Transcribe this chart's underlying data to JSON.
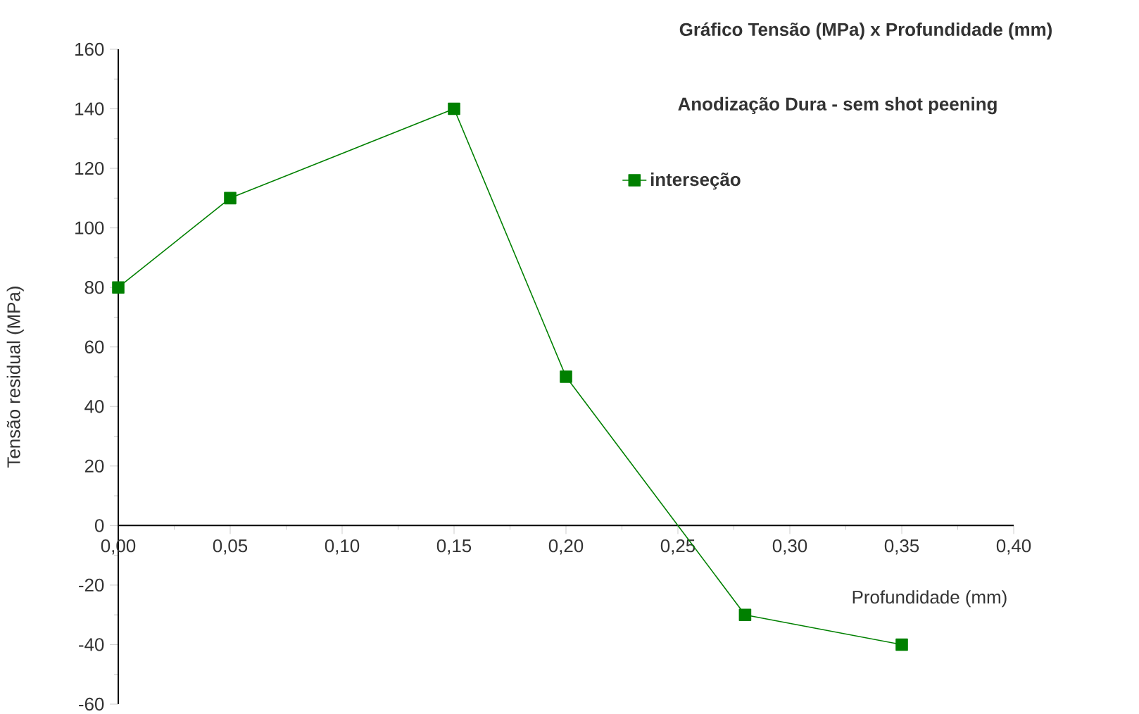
{
  "chart_data": {
    "type": "line",
    "title": "Gráfico Tensão (MPa) x Profundidade (mm)",
    "subtitle": "Anodização Dura - sem shot peening",
    "xlabel": "Profundidade (mm)",
    "ylabel": "Tensão residual (MPa)",
    "x": [
      0,
      0.05,
      0.15,
      0.2,
      0.28,
      0.35
    ],
    "series": [
      {
        "name": "interseção",
        "color": "#008000",
        "values": [
          80,
          110,
          140,
          50,
          -30,
          -40
        ]
      }
    ],
    "xlim": [
      0,
      0.4
    ],
    "ylim": [
      -60,
      160
    ],
    "xticks": [
      {
        "value": 0,
        "label": "0,00"
      },
      {
        "value": 0.05,
        "label": "0,05"
      },
      {
        "value": 0.1,
        "label": "0,10"
      },
      {
        "value": 0.15,
        "label": "0,15"
      },
      {
        "value": 0.2,
        "label": "0,20"
      },
      {
        "value": 0.25,
        "label": "0,25"
      },
      {
        "value": 0.3,
        "label": "0,30"
      },
      {
        "value": 0.35,
        "label": "0,35"
      },
      {
        "value": 0.4,
        "label": "0,40"
      }
    ],
    "yticks": [
      -60,
      -40,
      -20,
      0,
      20,
      40,
      60,
      80,
      100,
      120,
      140,
      160
    ],
    "marker": "square",
    "line_style": "solid",
    "legend": "top right",
    "grid": false
  }
}
